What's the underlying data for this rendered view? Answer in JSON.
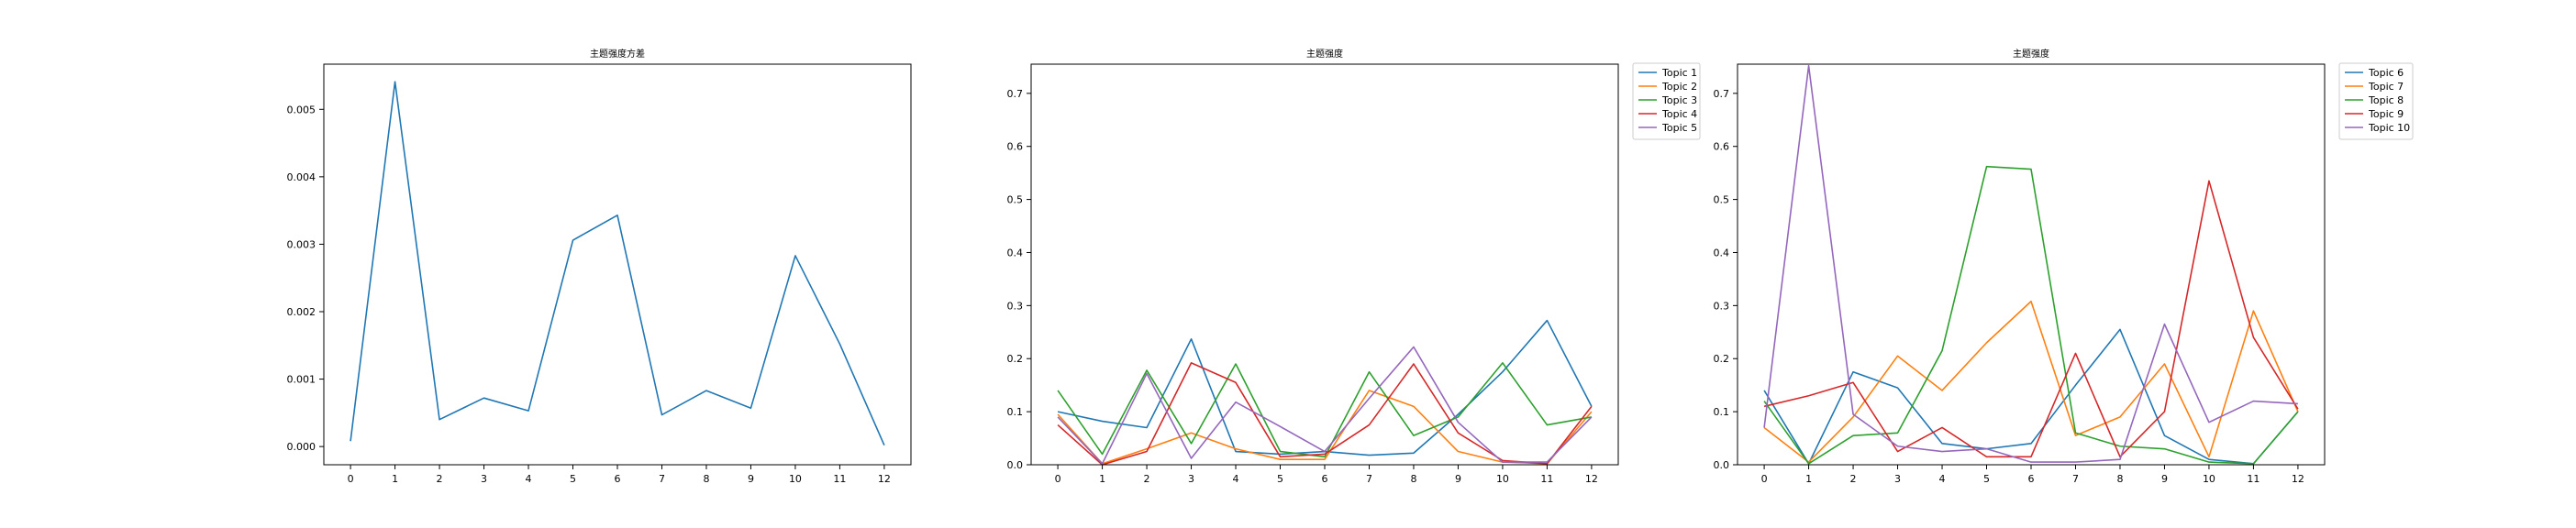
{
  "chart_data": [
    {
      "type": "line",
      "title": "主题强度方差",
      "xlabel": "",
      "ylabel": "",
      "x": [
        0,
        1,
        2,
        3,
        4,
        5,
        6,
        7,
        8,
        9,
        10,
        11,
        12
      ],
      "xlim": [
        -0.6,
        12.6
      ],
      "ylim": [
        -0.00027,
        0.00567
      ],
      "xticks": [
        "0",
        "1",
        "2",
        "3",
        "4",
        "5",
        "6",
        "7",
        "8",
        "9",
        "10",
        "11",
        "12"
      ],
      "yticks": [
        {
          "value": 0.0,
          "label": "0.000"
        },
        {
          "value": 0.001,
          "label": "0.001"
        },
        {
          "value": 0.002,
          "label": "0.002"
        },
        {
          "value": 0.003,
          "label": "0.003"
        },
        {
          "value": 0.004,
          "label": "0.004"
        },
        {
          "value": 0.005,
          "label": "0.005"
        }
      ],
      "grid": false,
      "legend": null,
      "series": [
        {
          "values": [
            8e-05,
            0.00541,
            0.0004,
            0.00072,
            0.00053,
            0.00306,
            0.00343,
            0.00047,
            0.00083,
            0.00057,
            0.00283,
            0.00152,
            2e-05
          ],
          "color": "#1f77b4"
        }
      ]
    },
    {
      "type": "line",
      "title": "主题强度",
      "xlabel": "",
      "ylabel": "",
      "x": [
        0,
        1,
        2,
        3,
        4,
        5,
        6,
        7,
        8,
        9,
        10,
        11,
        12
      ],
      "xlim": [
        -0.6,
        12.6
      ],
      "ylim": [
        0,
        0.755
      ],
      "xticks": [
        "0",
        "1",
        "2",
        "3",
        "4",
        "5",
        "6",
        "7",
        "8",
        "9",
        "10",
        "11",
        "12"
      ],
      "yticks": [
        {
          "value": 0.0,
          "label": "0.0"
        },
        {
          "value": 0.1,
          "label": "0.1"
        },
        {
          "value": 0.2,
          "label": "0.2"
        },
        {
          "value": 0.3,
          "label": "0.3"
        },
        {
          "value": 0.4,
          "label": "0.4"
        },
        {
          "value": 0.5,
          "label": "0.5"
        },
        {
          "value": 0.6,
          "label": "0.6"
        },
        {
          "value": 0.7,
          "label": "0.7"
        }
      ],
      "grid": false,
      "legend": "outside-right",
      "series": [
        {
          "name": "Topic 1",
          "color": "#1f77b4",
          "values": [
            0.1,
            0.082,
            0.07,
            0.237,
            0.025,
            0.02,
            0.025,
            0.018,
            0.022,
            0.095,
            0.175,
            0.272,
            0.11
          ]
        },
        {
          "name": "Topic 2",
          "color": "#ff7f0e",
          "values": [
            0.095,
            0.002,
            0.03,
            0.06,
            0.03,
            0.01,
            0.01,
            0.14,
            0.11,
            0.025,
            0.005,
            0.002,
            0.1
          ]
        },
        {
          "name": "Topic 3",
          "color": "#2ca02c",
          "values": [
            0.14,
            0.02,
            0.178,
            0.04,
            0.19,
            0.025,
            0.015,
            0.175,
            0.055,
            0.09,
            0.192,
            0.075,
            0.09
          ]
        },
        {
          "name": "Topic 4",
          "color": "#d62728",
          "values": [
            0.075,
            0.0,
            0.025,
            0.192,
            0.155,
            0.015,
            0.02,
            0.075,
            0.19,
            0.06,
            0.008,
            0.002,
            0.11
          ]
        },
        {
          "name": "Topic 5",
          "color": "#9467bd",
          "values": [
            0.09,
            0.002,
            0.172,
            0.012,
            0.118,
            0.072,
            0.025,
            0.125,
            0.222,
            0.08,
            0.005,
            0.005,
            0.09
          ]
        }
      ]
    },
    {
      "type": "line",
      "title": "主题强度",
      "xlabel": "",
      "ylabel": "",
      "x": [
        0,
        1,
        2,
        3,
        4,
        5,
        6,
        7,
        8,
        9,
        10,
        11,
        12
      ],
      "xlim": [
        -0.6,
        12.6
      ],
      "ylim": [
        0,
        0.755
      ],
      "xticks": [
        "0",
        "1",
        "2",
        "3",
        "4",
        "5",
        "6",
        "7",
        "8",
        "9",
        "10",
        "11",
        "12"
      ],
      "yticks": [
        {
          "value": 0.0,
          "label": "0.0"
        },
        {
          "value": 0.1,
          "label": "0.1"
        },
        {
          "value": 0.2,
          "label": "0.2"
        },
        {
          "value": 0.3,
          "label": "0.3"
        },
        {
          "value": 0.4,
          "label": "0.4"
        },
        {
          "value": 0.5,
          "label": "0.5"
        },
        {
          "value": 0.6,
          "label": "0.6"
        },
        {
          "value": 0.7,
          "label": "0.7"
        }
      ],
      "grid": false,
      "legend": "outside-right",
      "series": [
        {
          "name": "Topic 6",
          "color": "#1f77b4",
          "values": [
            0.14,
            0.002,
            0.175,
            0.145,
            0.04,
            0.03,
            0.04,
            0.15,
            0.255,
            0.055,
            0.01,
            0.002,
            0.1
          ]
        },
        {
          "name": "Topic 7",
          "color": "#ff7f0e",
          "values": [
            0.07,
            0.005,
            0.09,
            0.205,
            0.14,
            0.23,
            0.308,
            0.055,
            0.09,
            0.19,
            0.015,
            0.29,
            0.1
          ]
        },
        {
          "name": "Topic 8",
          "color": "#2ca02c",
          "values": [
            0.12,
            0.002,
            0.055,
            0.06,
            0.215,
            0.562,
            0.557,
            0.06,
            0.035,
            0.03,
            0.005,
            0.002,
            0.1
          ]
        },
        {
          "name": "Topic 9",
          "color": "#d62728",
          "values": [
            0.11,
            0.13,
            0.155,
            0.025,
            0.07,
            0.015,
            0.015,
            0.21,
            0.015,
            0.1,
            0.535,
            0.24,
            0.105
          ]
        },
        {
          "name": "Topic 10",
          "color": "#9467bd",
          "values": [
            0.07,
            0.752,
            0.095,
            0.035,
            0.025,
            0.03,
            0.005,
            0.005,
            0.01,
            0.265,
            0.08,
            0.12,
            0.115
          ]
        }
      ]
    }
  ]
}
